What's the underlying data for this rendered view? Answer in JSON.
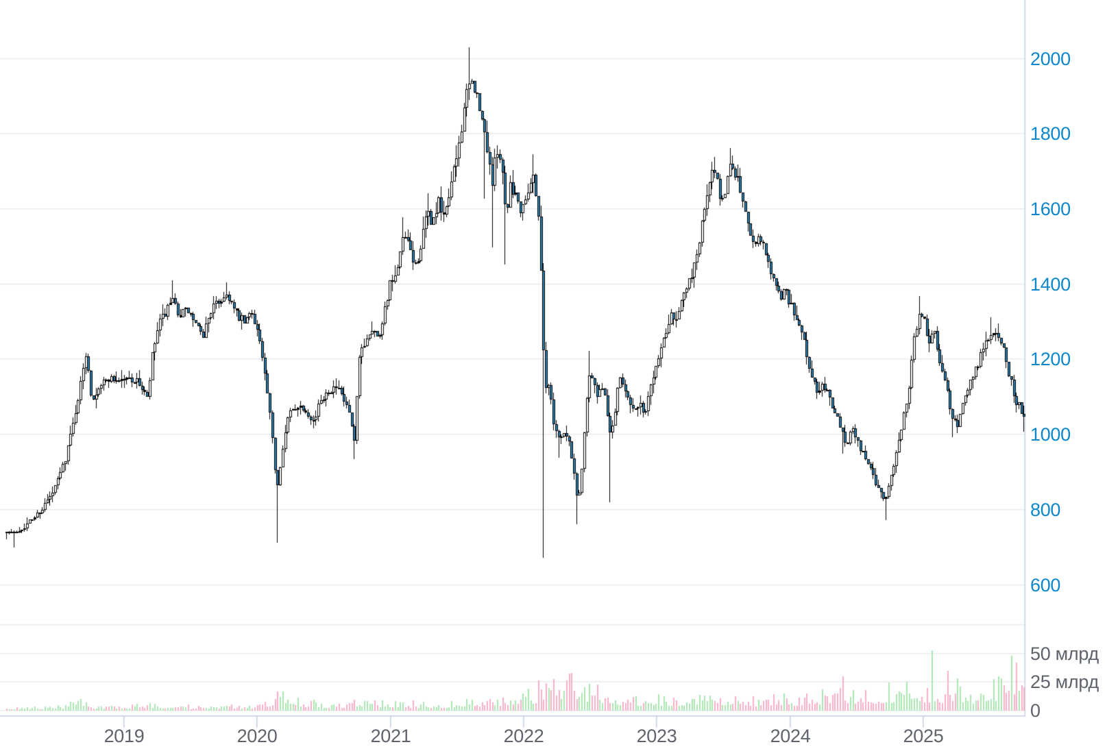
{
  "style": {
    "background": "#ffffff",
    "grid_color": "#ececec",
    "axis_line_color": "#c6d0e5",
    "price_label_color": "#0d87cc",
    "muted_label_color": "#5f636b",
    "candle_up_fill": "#ffffff",
    "candle_down_fill": "#2b80b4",
    "candle_border": "#000000",
    "wick_color": "#000000",
    "volume_up_color": "#a9e6b2",
    "volume_down_color": "#f8b0c5"
  },
  "chart_data": {
    "type": "candlestick",
    "title": "",
    "candle_interval": "week",
    "x_range_years": [
      2018.12,
      2025.76
    ],
    "x_axis": {
      "tick_values": [
        2019,
        2020,
        2021,
        2022,
        2023,
        2024,
        2025
      ],
      "tick_labels": [
        "2019",
        "2020",
        "2021",
        "2022",
        "2023",
        "2024",
        "2025"
      ]
    },
    "price_axis": {
      "min": 600,
      "max": 2050,
      "tick_values": [
        600,
        800,
        1000,
        1200,
        1400,
        1600,
        1800,
        2000
      ],
      "tick_labels": [
        "600",
        "800",
        "1000",
        "1200",
        "1400",
        "1600",
        "1800",
        "2000"
      ]
    },
    "volume_axis": {
      "unit": "млрд",
      "tick_values": [
        0,
        25,
        50
      ],
      "tick_labels": [
        "0",
        "25 млрд",
        "50 млрд"
      ],
      "grid_values": [
        0,
        25,
        50,
        75
      ],
      "max": 78
    },
    "price_path_weekly_close": [
      [
        2018.1,
        748
      ],
      [
        2018.17,
        735
      ],
      [
        2018.27,
        760
      ],
      [
        2018.38,
        800
      ],
      [
        2018.47,
        845
      ],
      [
        2018.56,
        935
      ],
      [
        2018.62,
        1030
      ],
      [
        2018.68,
        1140
      ],
      [
        2018.72,
        1225
      ],
      [
        2018.76,
        1090
      ],
      [
        2018.81,
        1130
      ],
      [
        2018.89,
        1150
      ],
      [
        2018.97,
        1145
      ],
      [
        2019.05,
        1150
      ],
      [
        2019.12,
        1135
      ],
      [
        2019.18,
        1090
      ],
      [
        2019.21,
        1200
      ],
      [
        2019.26,
        1290
      ],
      [
        2019.33,
        1335
      ],
      [
        2019.37,
        1350
      ],
      [
        2019.42,
        1320
      ],
      [
        2019.48,
        1330
      ],
      [
        2019.55,
        1285
      ],
      [
        2019.59,
        1255
      ],
      [
        2019.65,
        1330
      ],
      [
        2019.73,
        1360
      ],
      [
        2019.78,
        1375
      ],
      [
        2019.84,
        1320
      ],
      [
        2019.91,
        1295
      ],
      [
        2019.96,
        1330
      ],
      [
        2020.01,
        1270
      ],
      [
        2020.07,
        1130
      ],
      [
        2020.11,
        1010
      ],
      [
        2020.15,
        855
      ],
      [
        2020.19,
        965
      ],
      [
        2020.24,
        1055
      ],
      [
        2020.31,
        1080
      ],
      [
        2020.37,
        1065
      ],
      [
        2020.43,
        1035
      ],
      [
        2020.48,
        1095
      ],
      [
        2020.54,
        1120
      ],
      [
        2020.6,
        1125
      ],
      [
        2020.65,
        1090
      ],
      [
        2020.69,
        1060
      ],
      [
        2020.73,
        975
      ],
      [
        2020.77,
        1210
      ],
      [
        2020.82,
        1255
      ],
      [
        2020.87,
        1290
      ],
      [
        2020.91,
        1250
      ],
      [
        2020.95,
        1320
      ],
      [
        2021.0,
        1400
      ],
      [
        2021.05,
        1420
      ],
      [
        2021.1,
        1530
      ],
      [
        2021.15,
        1490
      ],
      [
        2021.19,
        1445
      ],
      [
        2021.23,
        1500
      ],
      [
        2021.28,
        1590
      ],
      [
        2021.32,
        1560
      ],
      [
        2021.36,
        1620
      ],
      [
        2021.4,
        1570
      ],
      [
        2021.44,
        1640
      ],
      [
        2021.48,
        1700
      ],
      [
        2021.52,
        1780
      ],
      [
        2021.56,
        1880
      ],
      [
        2021.6,
        1935
      ],
      [
        2021.64,
        1920
      ],
      [
        2021.67,
        1860
      ],
      [
        2021.71,
        1800
      ],
      [
        2021.74,
        1740
      ],
      [
        2021.77,
        1660
      ],
      [
        2021.8,
        1770
      ],
      [
        2021.84,
        1720
      ],
      [
        2021.87,
        1580
      ],
      [
        2021.9,
        1670
      ],
      [
        2021.94,
        1640
      ],
      [
        2021.98,
        1600
      ],
      [
        2022.03,
        1650
      ],
      [
        2022.08,
        1690
      ],
      [
        2022.12,
        1560
      ],
      [
        2022.16,
        1135
      ],
      [
        2022.2,
        1120
      ],
      [
        2022.23,
        1030
      ],
      [
        2022.27,
        990
      ],
      [
        2022.3,
        1005
      ],
      [
        2022.34,
        985
      ],
      [
        2022.38,
        900
      ],
      [
        2022.41,
        815
      ],
      [
        2022.44,
        910
      ],
      [
        2022.47,
        1080
      ],
      [
        2022.5,
        1170
      ],
      [
        2022.53,
        1130
      ],
      [
        2022.56,
        1100
      ],
      [
        2022.59,
        1120
      ],
      [
        2022.62,
        1090
      ],
      [
        2022.65,
        1000
      ],
      [
        2022.68,
        1040
      ],
      [
        2022.71,
        1120
      ],
      [
        2022.73,
        1150
      ],
      [
        2022.79,
        1100
      ],
      [
        2022.83,
        1060
      ],
      [
        2022.88,
        1075
      ],
      [
        2022.92,
        1060
      ],
      [
        2022.96,
        1140
      ],
      [
        2023.0,
        1190
      ],
      [
        2023.04,
        1240
      ],
      [
        2023.08,
        1290
      ],
      [
        2023.11,
        1330
      ],
      [
        2023.15,
        1310
      ],
      [
        2023.18,
        1350
      ],
      [
        2023.22,
        1380
      ],
      [
        2023.26,
        1420
      ],
      [
        2023.29,
        1465
      ],
      [
        2023.33,
        1530
      ],
      [
        2023.36,
        1600
      ],
      [
        2023.4,
        1670
      ],
      [
        2023.44,
        1710
      ],
      [
        2023.47,
        1640
      ],
      [
        2023.5,
        1620
      ],
      [
        2023.53,
        1680
      ],
      [
        2023.56,
        1730
      ],
      [
        2023.6,
        1690
      ],
      [
        2023.64,
        1630
      ],
      [
        2023.67,
        1585
      ],
      [
        2023.71,
        1530
      ],
      [
        2023.75,
        1515
      ],
      [
        2023.78,
        1525
      ],
      [
        2023.82,
        1480
      ],
      [
        2023.85,
        1450
      ],
      [
        2023.89,
        1395
      ],
      [
        2023.93,
        1365
      ],
      [
        2023.96,
        1390
      ],
      [
        2024.0,
        1350
      ],
      [
        2024.04,
        1315
      ],
      [
        2024.07,
        1290
      ],
      [
        2024.11,
        1255
      ],
      [
        2024.14,
        1185
      ],
      [
        2024.18,
        1135
      ],
      [
        2024.22,
        1110
      ],
      [
        2024.25,
        1135
      ],
      [
        2024.29,
        1100
      ],
      [
        2024.32,
        1080
      ],
      [
        2024.36,
        1040
      ],
      [
        2024.39,
        1005
      ],
      [
        2024.43,
        980
      ],
      [
        2024.47,
        1025
      ],
      [
        2024.5,
        990
      ],
      [
        2024.54,
        960
      ],
      [
        2024.57,
        930
      ],
      [
        2024.61,
        910
      ],
      [
        2024.64,
        880
      ],
      [
        2024.68,
        845
      ],
      [
        2024.72,
        825
      ],
      [
        2024.75,
        880
      ],
      [
        2024.79,
        935
      ],
      [
        2024.82,
        985
      ],
      [
        2024.86,
        1060
      ],
      [
        2024.9,
        1135
      ],
      [
        2024.93,
        1255
      ],
      [
        2024.97,
        1320
      ],
      [
        2025.01,
        1300
      ],
      [
        2025.05,
        1250
      ],
      [
        2025.08,
        1285
      ],
      [
        2025.11,
        1215
      ],
      [
        2025.15,
        1160
      ],
      [
        2025.19,
        1105
      ],
      [
        2025.22,
        1040
      ],
      [
        2025.26,
        1025
      ],
      [
        2025.29,
        1075
      ],
      [
        2025.33,
        1120
      ],
      [
        2025.37,
        1150
      ],
      [
        2025.41,
        1185
      ],
      [
        2025.45,
        1230
      ],
      [
        2025.49,
        1255
      ],
      [
        2025.52,
        1260
      ],
      [
        2025.56,
        1268
      ],
      [
        2025.6,
        1240
      ],
      [
        2025.63,
        1185
      ],
      [
        2025.67,
        1130
      ],
      [
        2025.7,
        1090
      ],
      [
        2025.74,
        1062
      ],
      [
        2025.76,
        1055
      ]
    ],
    "wick_extremes": [
      {
        "t": 2018.17,
        "low": 700
      },
      {
        "t": 2019.37,
        "high": 1410
      },
      {
        "t": 2019.78,
        "high": 1405
      },
      {
        "t": 2020.15,
        "low": 712
      },
      {
        "t": 2020.73,
        "low": 935
      },
      {
        "t": 2021.1,
        "high": 1578
      },
      {
        "t": 2021.28,
        "high": 1642
      },
      {
        "t": 2021.6,
        "high": 2030
      },
      {
        "t": 2021.71,
        "low": 1628
      },
      {
        "t": 2021.77,
        "low": 1498
      },
      {
        "t": 2021.87,
        "low": 1452
      },
      {
        "t": 2022.08,
        "high": 1745
      },
      {
        "t": 2022.16,
        "low": 672
      },
      {
        "t": 2022.27,
        "low": 938
      },
      {
        "t": 2022.41,
        "low": 762
      },
      {
        "t": 2022.5,
        "high": 1222
      },
      {
        "t": 2022.65,
        "low": 820
      },
      {
        "t": 2023.56,
        "high": 1762
      },
      {
        "t": 2024.39,
        "low": 950
      },
      {
        "t": 2024.72,
        "low": 773
      },
      {
        "t": 2024.97,
        "high": 1368
      },
      {
        "t": 2025.22,
        "low": 993
      },
      {
        "t": 2025.52,
        "high": 1312
      },
      {
        "t": 2025.76,
        "low": 1008
      }
    ],
    "volume_path_bln": [
      [
        2018.1,
        1.5
      ],
      [
        2018.3,
        2
      ],
      [
        2018.55,
        3
      ],
      [
        2018.66,
        6.5
      ],
      [
        2018.8,
        3
      ],
      [
        2019.0,
        2.5
      ],
      [
        2019.2,
        4.5
      ],
      [
        2019.35,
        3.5
      ],
      [
        2019.6,
        2.5
      ],
      [
        2019.8,
        3.5
      ],
      [
        2019.95,
        2.5
      ],
      [
        2020.07,
        6
      ],
      [
        2020.15,
        11
      ],
      [
        2020.25,
        9
      ],
      [
        2020.35,
        7
      ],
      [
        2020.5,
        4.5
      ],
      [
        2020.65,
        4
      ],
      [
        2020.77,
        7
      ],
      [
        2020.9,
        5.5
      ],
      [
        2021.0,
        6
      ],
      [
        2021.15,
        5.5
      ],
      [
        2021.3,
        5
      ],
      [
        2021.45,
        5.5
      ],
      [
        2021.6,
        7.5
      ],
      [
        2021.7,
        7
      ],
      [
        2021.85,
        7.5
      ],
      [
        2021.98,
        9
      ],
      [
        2022.08,
        13
      ],
      [
        2022.16,
        22
      ],
      [
        2022.22,
        18
      ],
      [
        2022.3,
        21
      ],
      [
        2022.38,
        24
      ],
      [
        2022.44,
        19
      ],
      [
        2022.5,
        16
      ],
      [
        2022.6,
        14
      ],
      [
        2022.7,
        10
      ],
      [
        2022.85,
        8
      ],
      [
        2023.0,
        8.5
      ],
      [
        2023.15,
        8
      ],
      [
        2023.3,
        9
      ],
      [
        2023.45,
        11
      ],
      [
        2023.6,
        9
      ],
      [
        2023.75,
        8
      ],
      [
        2023.9,
        9.5
      ],
      [
        2024.05,
        9
      ],
      [
        2024.2,
        11
      ],
      [
        2024.35,
        13
      ],
      [
        2024.45,
        13
      ],
      [
        2024.6,
        11
      ],
      [
        2024.72,
        15
      ],
      [
        2024.85,
        14
      ],
      [
        2024.95,
        17
      ],
      [
        2025.05,
        14
      ],
      [
        2025.12,
        12
      ],
      [
        2025.2,
        13
      ],
      [
        2025.3,
        12
      ],
      [
        2025.45,
        14
      ],
      [
        2025.55,
        18
      ],
      [
        2025.65,
        25
      ],
      [
        2025.76,
        20
      ]
    ],
    "volume_spikes_bln": [
      {
        "t": 2024.39,
        "v": 30,
        "dir": "down"
      },
      {
        "t": 2025.07,
        "v": 53,
        "dir": "up"
      },
      {
        "t": 2025.19,
        "v": 35,
        "dir": "down"
      },
      {
        "t": 2025.26,
        "v": 28,
        "dir": "up"
      },
      {
        "t": 2025.56,
        "v": 30,
        "dir": "up"
      },
      {
        "t": 2025.59,
        "v": 28,
        "dir": "up"
      },
      {
        "t": 2025.67,
        "v": 48,
        "dir": "up"
      },
      {
        "t": 2025.7,
        "v": 42,
        "dir": "down"
      }
    ]
  }
}
